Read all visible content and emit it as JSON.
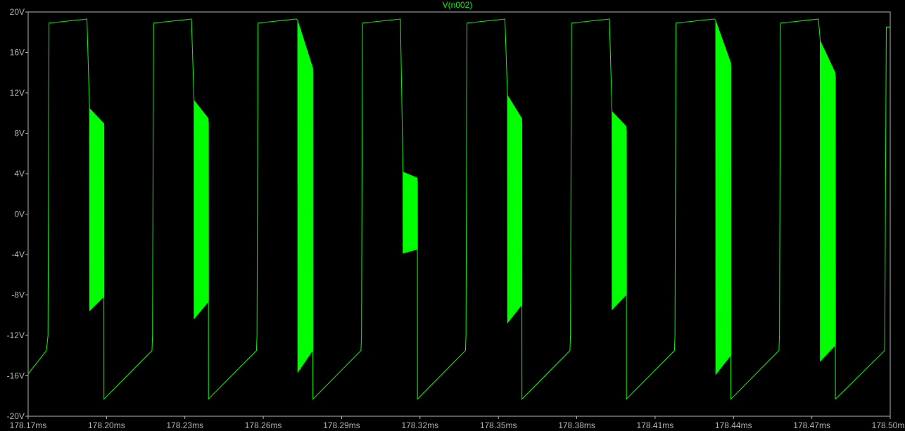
{
  "chart_data": {
    "type": "line",
    "title": "V(n002)",
    "xlabel": "",
    "ylabel": "",
    "x_unit": "ms",
    "y_unit": "V",
    "xlim": [
      178.17,
      178.5
    ],
    "ylim": [
      -20,
      20
    ],
    "grid": false,
    "x_ticks": [
      "178.17ms",
      "178.20ms",
      "178.23ms",
      "178.26ms",
      "178.29ms",
      "178.32ms",
      "178.35ms",
      "178.38ms",
      "178.41ms",
      "178.44ms",
      "178.47ms",
      "178.50ms"
    ],
    "y_ticks": [
      "20V",
      "16V",
      "12V",
      "8V",
      "4V",
      "0V",
      "-4V",
      "-8V",
      "-12V",
      "-16V",
      "-20V"
    ],
    "colors": {
      "trace": "#00ff00",
      "axis": "#b4b4b4",
      "background": "#000000"
    },
    "series": [
      {
        "name": "V(n002)",
        "period_ms": 0.04,
        "cycles": [
          {
            "rise_ms": 178.178,
            "top_start_V": 18.9,
            "top_end_V": 19.3,
            "fall_ms": 178.193,
            "burst_start_ms": 178.1935,
            "burst_end_ms": 178.199,
            "burst_hi_V": 10.5,
            "burst_lo_V": -9.6,
            "burst_end_hi_V": 9.0,
            "burst_end_lo_V": -8.2,
            "jump_ms": 178.199,
            "min_V": -18.3,
            "ramp_end_V": -13.5
          },
          {
            "rise_ms": 178.218,
            "top_start_V": 18.9,
            "top_end_V": 19.3,
            "fall_ms": 178.233,
            "burst_start_ms": 178.2335,
            "burst_end_ms": 178.239,
            "burst_hi_V": 11.3,
            "burst_lo_V": -10.4,
            "burst_end_hi_V": 9.5,
            "burst_end_lo_V": -8.7,
            "jump_ms": 178.239,
            "min_V": -18.3,
            "ramp_end_V": -13.5
          },
          {
            "rise_ms": 178.258,
            "top_start_V": 18.9,
            "top_end_V": 19.3,
            "fall_ms": 178.273,
            "burst_start_ms": 178.2732,
            "burst_end_ms": 178.279,
            "burst_hi_V": 19.2,
            "burst_lo_V": -15.7,
            "burst_end_hi_V": 14.5,
            "burst_end_lo_V": -13.5,
            "jump_ms": 178.279,
            "min_V": -18.3,
            "ramp_end_V": -13.5
          },
          {
            "rise_ms": 178.298,
            "top_start_V": 18.9,
            "top_end_V": 19.3,
            "fall_ms": 178.313,
            "burst_start_ms": 178.3135,
            "burst_end_ms": 178.319,
            "burst_hi_V": 4.2,
            "burst_lo_V": -3.9,
            "burst_end_hi_V": 3.6,
            "burst_end_lo_V": -3.5,
            "jump_ms": 178.319,
            "min_V": -18.3,
            "ramp_end_V": -13.5
          },
          {
            "rise_ms": 178.338,
            "top_start_V": 18.9,
            "top_end_V": 19.3,
            "fall_ms": 178.353,
            "burst_start_ms": 178.3535,
            "burst_end_ms": 178.359,
            "burst_hi_V": 11.8,
            "burst_lo_V": -10.8,
            "burst_end_hi_V": 9.5,
            "burst_end_lo_V": -9.0,
            "jump_ms": 178.359,
            "min_V": -18.3,
            "ramp_end_V": -13.5
          },
          {
            "rise_ms": 178.378,
            "top_start_V": 18.9,
            "top_end_V": 19.3,
            "fall_ms": 178.393,
            "burst_start_ms": 178.3935,
            "burst_end_ms": 178.399,
            "burst_hi_V": 10.2,
            "burst_lo_V": -9.5,
            "burst_end_hi_V": 8.7,
            "burst_end_lo_V": -8.0,
            "jump_ms": 178.399,
            "min_V": -18.3,
            "ramp_end_V": -13.5
          },
          {
            "rise_ms": 178.418,
            "top_start_V": 18.9,
            "top_end_V": 19.3,
            "fall_ms": 178.433,
            "burst_start_ms": 178.4332,
            "burst_end_ms": 178.439,
            "burst_hi_V": 19.2,
            "burst_lo_V": -15.9,
            "burst_end_hi_V": 15.0,
            "burst_end_lo_V": -14.0,
            "jump_ms": 178.439,
            "min_V": -18.3,
            "ramp_end_V": -13.5
          },
          {
            "rise_ms": 178.458,
            "top_start_V": 18.9,
            "top_end_V": 19.3,
            "fall_ms": 178.473,
            "burst_start_ms": 178.4732,
            "burst_end_ms": 178.479,
            "burst_hi_V": 17.2,
            "burst_lo_V": -14.6,
            "burst_end_hi_V": 14.0,
            "burst_end_lo_V": -13.0,
            "jump_ms": 178.479,
            "min_V": -18.3,
            "ramp_end_V": -13.5
          }
        ],
        "start_V": -15.8,
        "start_ramp_end_ms": 178.177,
        "start_ramp_end_V": -13.5,
        "end_rise_ms": 178.4985,
        "end_V": 18.5
      }
    ]
  }
}
